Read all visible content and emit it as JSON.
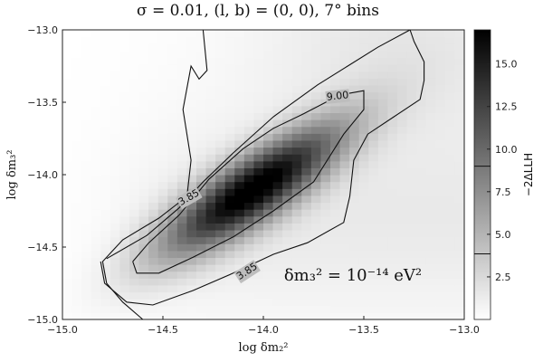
{
  "chart_data": {
    "type": "heatmap",
    "title": "σ = 0.01, (l, b) = (0, 0), 7° bins",
    "xlabel": "log δm₂²",
    "ylabel": "log δm₃²",
    "colorbar_label": "−2ΔLLH",
    "annotation": "δm₃² = 10⁻¹⁴ eV²",
    "xlim": [
      -15.0,
      -13.0
    ],
    "ylim": [
      -15.0,
      -13.0
    ],
    "x_ticks": [
      "−15.0",
      "−14.5",
      "−14.0",
      "−13.5",
      "−13.0"
    ],
    "y_ticks": [
      "−15.0",
      "−14.5",
      "−14.0",
      "−13.5",
      "−13.0"
    ],
    "colorbar_range": [
      0,
      17
    ],
    "colorbar_ticks": [
      "2.5",
      "5.0",
      "7.5",
      "10.0",
      "12.5",
      "15.0"
    ],
    "colormap": [
      "#ffffff",
      "#000000"
    ],
    "grid": false,
    "peak": {
      "x": -14.05,
      "y": -14.1,
      "value": 17
    },
    "contour_levels": [
      {
        "level": 3.85,
        "label": "3.85"
      },
      {
        "level": 9.0,
        "label": "9.00"
      }
    ],
    "contours": [
      {
        "level": 3.85,
        "points": [
          [
            -14.3,
            -13.0
          ],
          [
            -14.28,
            -13.28
          ],
          [
            -14.32,
            -13.34
          ],
          [
            -14.36,
            -13.25
          ],
          [
            -14.4,
            -13.55
          ],
          [
            -14.36,
            -13.9
          ],
          [
            -14.38,
            -14.15
          ],
          [
            -14.52,
            -14.3
          ],
          [
            -14.7,
            -14.45
          ],
          [
            -14.8,
            -14.6
          ],
          [
            -14.78,
            -14.75
          ],
          [
            -14.7,
            -14.88
          ],
          [
            -14.6,
            -15.0
          ]
        ]
      },
      {
        "level": 3.85,
        "points": [
          [
            -14.78,
            -14.58
          ],
          [
            -14.58,
            -14.42
          ],
          [
            -14.42,
            -14.23
          ],
          [
            -14.3,
            -14.05
          ],
          [
            -14.15,
            -13.85
          ],
          [
            -13.95,
            -13.6
          ],
          [
            -13.73,
            -13.38
          ],
          [
            -13.58,
            -13.25
          ],
          [
            -13.43,
            -13.12
          ],
          [
            -13.27,
            -13.0
          ]
        ]
      },
      {
        "level": 3.85,
        "points": [
          [
            -14.81,
            -14.6
          ],
          [
            -14.79,
            -14.75
          ],
          [
            -14.68,
            -14.88
          ],
          [
            -14.55,
            -14.9
          ],
          [
            -14.35,
            -14.8
          ],
          [
            -14.15,
            -14.68
          ],
          [
            -13.95,
            -14.55
          ],
          [
            -13.78,
            -14.47
          ],
          [
            -13.6,
            -14.33
          ],
          [
            -13.57,
            -14.15
          ],
          [
            -13.55,
            -13.9
          ],
          [
            -13.48,
            -13.72
          ],
          [
            -13.35,
            -13.6
          ],
          [
            -13.22,
            -13.48
          ],
          [
            -13.2,
            -13.35
          ],
          [
            -13.2,
            -13.22
          ],
          [
            -13.25,
            -13.08
          ],
          [
            -13.27,
            -13.0
          ]
        ]
      },
      {
        "level": 9.0,
        "points": [
          [
            -14.65,
            -14.6
          ],
          [
            -14.57,
            -14.47
          ],
          [
            -14.42,
            -14.28
          ],
          [
            -14.27,
            -14.03
          ],
          [
            -14.1,
            -13.82
          ],
          [
            -13.95,
            -13.68
          ],
          [
            -13.8,
            -13.58
          ],
          [
            -13.62,
            -13.45
          ],
          [
            -13.5,
            -13.42
          ],
          [
            -13.5,
            -13.55
          ],
          [
            -13.6,
            -13.72
          ],
          [
            -13.75,
            -14.05
          ],
          [
            -13.95,
            -14.25
          ],
          [
            -14.15,
            -14.43
          ],
          [
            -14.35,
            -14.57
          ],
          [
            -14.52,
            -14.68
          ],
          [
            -14.63,
            -14.68
          ],
          [
            -14.65,
            -14.6
          ]
        ]
      }
    ]
  }
}
